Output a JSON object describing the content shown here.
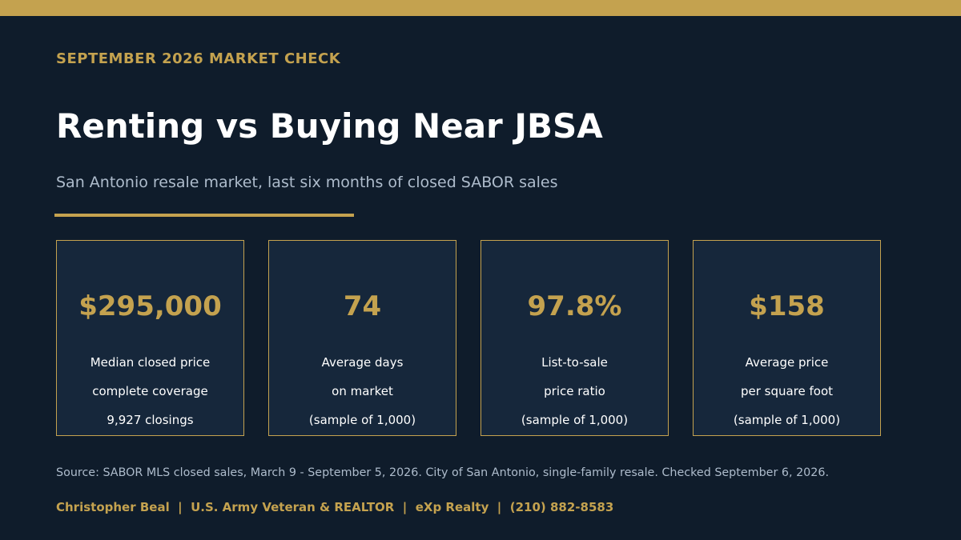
{
  "colors": {
    "background": "#0f1c2b",
    "card_background": "#16273b",
    "accent_gold": "#c4a24f",
    "title_text": "#ffffff",
    "muted_text": "#aebccc"
  },
  "header": {
    "eyebrow": "SEPTEMBER 2026 MARKET CHECK",
    "title": "Renting vs Buying Near JBSA",
    "subtitle": "San Antonio resale market, last six months of closed SABOR sales"
  },
  "stats": [
    {
      "value": "$295,000",
      "line1": "Median closed price",
      "line2": "complete coverage",
      "line3": "9,927 closings"
    },
    {
      "value": "74",
      "line1": "Average days",
      "line2": "on market",
      "line3": "(sample of 1,000)"
    },
    {
      "value": "97.8%",
      "line1": "List-to-sale",
      "line2": "price ratio",
      "line3": "(sample of 1,000)"
    },
    {
      "value": "$158",
      "line1": "Average price",
      "line2": "per square foot",
      "line3": "(sample of 1,000)"
    }
  ],
  "source": "Source: SABOR MLS closed sales, March 9 - September 5, 2026. City of San Antonio, single-family resale. Checked September 6, 2026.",
  "footer": "Christopher Beal  |  U.S. Army Veteran & REALTOR  |  eXp Realty  |  (210) 882-8583"
}
